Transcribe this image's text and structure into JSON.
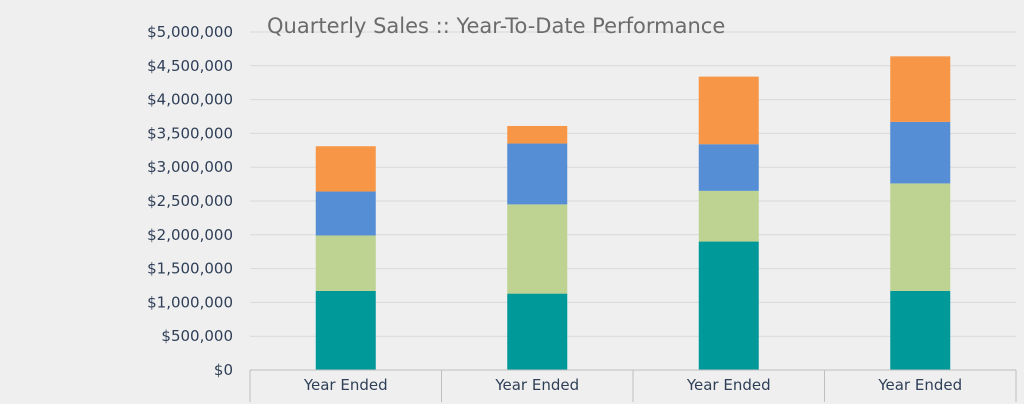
{
  "chart_data": {
    "type": "bar",
    "stacked": true,
    "title": "Quarterly Sales ::  Year-To-Date Performance",
    "categories": [
      "Year Ended",
      "Year Ended",
      "Year Ended",
      "Year Ended"
    ],
    "ylim": [
      0,
      5000000
    ],
    "yticks": [
      0,
      500000,
      1000000,
      1500000,
      2000000,
      2500000,
      3000000,
      3500000,
      4000000,
      4500000,
      5000000
    ],
    "ytick_labels": [
      "$0",
      "$500,000",
      "$1,000,000",
      "$1,500,000",
      "$2,000,000",
      "$2,500,000",
      "$3,000,000",
      "$3,500,000",
      "$4,000,000",
      "$4,500,000",
      "$5,000,000"
    ],
    "grid": true,
    "legend": "none",
    "series": [
      {
        "color": "#009999",
        "values": [
          1170000,
          1130000,
          1900000,
          1170000
        ]
      },
      {
        "color": "#bed291",
        "values": [
          820000,
          1320000,
          750000,
          1590000
        ]
      },
      {
        "color": "#558ed5",
        "values": [
          650000,
          900000,
          690000,
          910000
        ]
      },
      {
        "color": "#f79646",
        "values": [
          670000,
          260000,
          1000000,
          970000
        ]
      }
    ]
  }
}
